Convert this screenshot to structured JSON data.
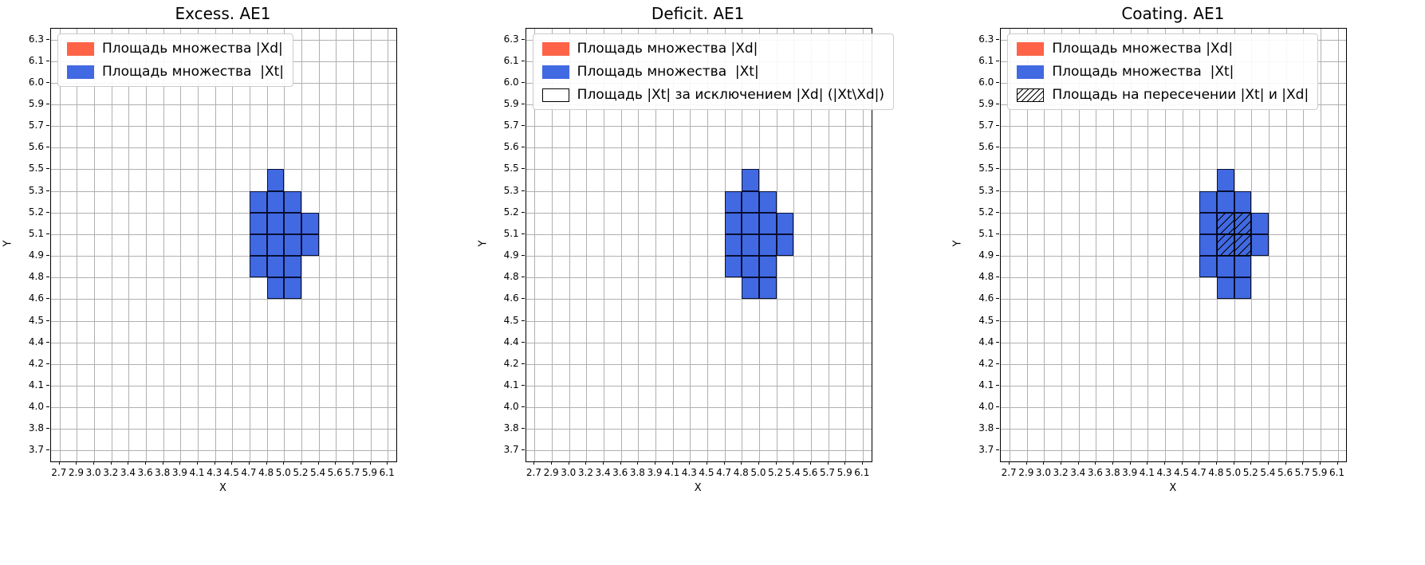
{
  "colors": {
    "xd_fill": "#ff6347",
    "xt_fill": "#4169e1",
    "grid": "#b0b0b0",
    "axes_edge": "#000000",
    "background": "#ffffff"
  },
  "chart_data": [
    {
      "type": "heatmap",
      "title": "Excess. AE1",
      "xlabel": "X",
      "ylabel": "Y",
      "grid": true,
      "x_ticks": [
        "2.7",
        "2.9",
        "3.0",
        "3.2",
        "3.4",
        "3.6",
        "3.8",
        "3.9",
        "4.1",
        "4.3",
        "4.5",
        "4.7",
        "4.8",
        "5.0",
        "5.2",
        "5.4",
        "5.6",
        "5.7",
        "5.9",
        "6.1"
      ],
      "y_ticks": [
        "3.7",
        "3.8",
        "4.0",
        "4.1",
        "4.2",
        "4.4",
        "4.5",
        "4.6",
        "4.8",
        "4.9",
        "5.1",
        "5.2",
        "5.3",
        "5.5",
        "5.6",
        "5.7",
        "5.9",
        "6.0",
        "6.1",
        "6.3"
      ],
      "legend_position": "upper-left",
      "legend": [
        {
          "swatch": "xd",
          "label": "Площадь множества |Xd|"
        },
        {
          "swatch": "xt",
          "label": "Площадь множества  |Xt|"
        }
      ],
      "blue_cells": [
        [
          12,
          12
        ],
        [
          11,
          11
        ],
        [
          12,
          11
        ],
        [
          13,
          11
        ],
        [
          11,
          10
        ],
        [
          12,
          10
        ],
        [
          13,
          10
        ],
        [
          14,
          10
        ],
        [
          11,
          9
        ],
        [
          12,
          9
        ],
        [
          13,
          9
        ],
        [
          14,
          9
        ],
        [
          11,
          8
        ],
        [
          12,
          8
        ],
        [
          13,
          8
        ],
        [
          12,
          7
        ],
        [
          13,
          7
        ]
      ],
      "hatched_cells": []
    },
    {
      "type": "heatmap",
      "title": "Deficit. AE1",
      "xlabel": "X",
      "ylabel": "Y",
      "grid": true,
      "x_ticks": [
        "2.7",
        "2.9",
        "3.0",
        "3.2",
        "3.4",
        "3.6",
        "3.8",
        "3.9",
        "4.1",
        "4.3",
        "4.5",
        "4.7",
        "4.8",
        "5.0",
        "5.2",
        "5.4",
        "5.6",
        "5.7",
        "5.9",
        "6.1"
      ],
      "y_ticks": [
        "3.7",
        "3.8",
        "4.0",
        "4.1",
        "4.2",
        "4.4",
        "4.5",
        "4.6",
        "4.8",
        "4.9",
        "5.1",
        "5.2",
        "5.3",
        "5.5",
        "5.6",
        "5.7",
        "5.9",
        "6.0",
        "6.1",
        "6.3"
      ],
      "legend_position": "upper-left",
      "legend": [
        {
          "swatch": "xd",
          "label": "Площадь множества |Xd|"
        },
        {
          "swatch": "xt",
          "label": "Площадь множества  |Xt|"
        },
        {
          "swatch": "none",
          "label": "Площадь |Xt| за исключением |Xd| (|Xt\\Xd|)"
        }
      ],
      "blue_cells": [
        [
          12,
          12
        ],
        [
          11,
          11
        ],
        [
          12,
          11
        ],
        [
          13,
          11
        ],
        [
          11,
          10
        ],
        [
          12,
          10
        ],
        [
          13,
          10
        ],
        [
          14,
          10
        ],
        [
          11,
          9
        ],
        [
          12,
          9
        ],
        [
          13,
          9
        ],
        [
          14,
          9
        ],
        [
          11,
          8
        ],
        [
          12,
          8
        ],
        [
          13,
          8
        ],
        [
          12,
          7
        ],
        [
          13,
          7
        ]
      ],
      "hatched_cells": []
    },
    {
      "type": "heatmap",
      "title": "Coating. AE1",
      "xlabel": "X",
      "ylabel": "Y",
      "grid": true,
      "x_ticks": [
        "2.7",
        "2.9",
        "3.0",
        "3.2",
        "3.4",
        "3.6",
        "3.8",
        "3.9",
        "4.1",
        "4.3",
        "4.5",
        "4.7",
        "4.8",
        "5.0",
        "5.2",
        "5.4",
        "5.6",
        "5.7",
        "5.9",
        "6.1"
      ],
      "y_ticks": [
        "3.7",
        "3.8",
        "4.0",
        "4.1",
        "4.2",
        "4.4",
        "4.5",
        "4.6",
        "4.8",
        "4.9",
        "5.1",
        "5.2",
        "5.3",
        "5.5",
        "5.6",
        "5.7",
        "5.9",
        "6.0",
        "6.1",
        "6.3"
      ],
      "legend_position": "upper-left",
      "legend": [
        {
          "swatch": "xd",
          "label": "Площадь множества |Xd|"
        },
        {
          "swatch": "xt",
          "label": "Площадь множества  |Xt|"
        },
        {
          "swatch": "hatch",
          "label": "Площадь на пересечении |Xt| и |Xd|"
        }
      ],
      "blue_cells": [
        [
          12,
          12
        ],
        [
          11,
          11
        ],
        [
          12,
          11
        ],
        [
          13,
          11
        ],
        [
          11,
          10
        ],
        [
          12,
          10
        ],
        [
          13,
          10
        ],
        [
          14,
          10
        ],
        [
          11,
          9
        ],
        [
          12,
          9
        ],
        [
          13,
          9
        ],
        [
          14,
          9
        ],
        [
          11,
          8
        ],
        [
          12,
          8
        ],
        [
          13,
          8
        ],
        [
          12,
          7
        ],
        [
          13,
          7
        ]
      ],
      "hatched_cells": [
        [
          12,
          10
        ],
        [
          13,
          10
        ],
        [
          12,
          9
        ],
        [
          13,
          9
        ]
      ]
    }
  ]
}
